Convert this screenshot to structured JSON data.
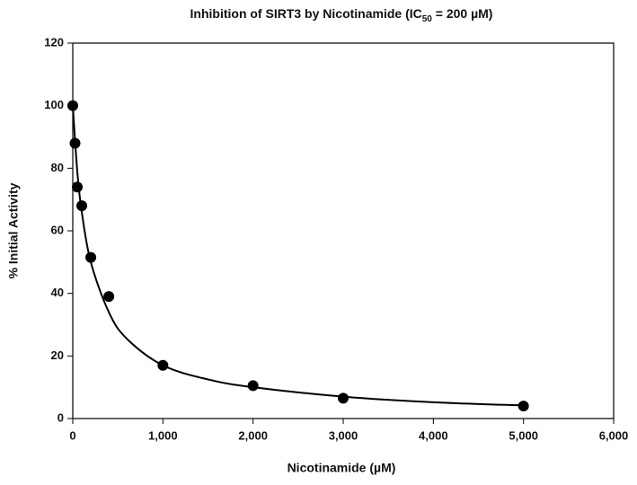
{
  "chart_data": {
    "type": "scatter",
    "title": [
      "Inhibition of SIRT3 by Nicotinamide (IC",
      "50",
      " = 200 µM)"
    ],
    "x_label": "Nicotinamide (µM)",
    "y_label": "% Initial Activity",
    "xlim": [
      0,
      6000
    ],
    "xticks": [
      0,
      {
        "value": 1000,
        "label": "1,000"
      },
      {
        "value": 2000,
        "label": "2,000"
      },
      {
        "value": 3000,
        "label": "3,000"
      },
      {
        "value": 4000,
        "label": "4,000"
      },
      {
        "value": 5000,
        "label": "5,000"
      },
      {
        "value": 6000,
        "label": "6,000"
      }
    ],
    "ylim": [
      0,
      120
    ],
    "yticks": [
      0,
      20,
      40,
      60,
      80,
      100,
      120
    ],
    "series": [
      {
        "type": "scatter",
        "color": "#000000",
        "x": [
          0,
          25,
          50,
          100,
          200,
          400,
          1000,
          2000,
          3000,
          5000
        ],
        "values": [
          100,
          88,
          74,
          68,
          51.5,
          39,
          17,
          10.5,
          6.5,
          4
        ]
      },
      {
        "type": "line",
        "color": "#000000",
        "x": [
          0,
          50,
          100,
          200,
          400,
          600,
          1000,
          1500,
          2000,
          3000,
          4000,
          5000
        ],
        "values": [
          100,
          79,
          66,
          50,
          34,
          25.5,
          17,
          12.5,
          10,
          7,
          5.2,
          4.2
        ]
      }
    ]
  }
}
